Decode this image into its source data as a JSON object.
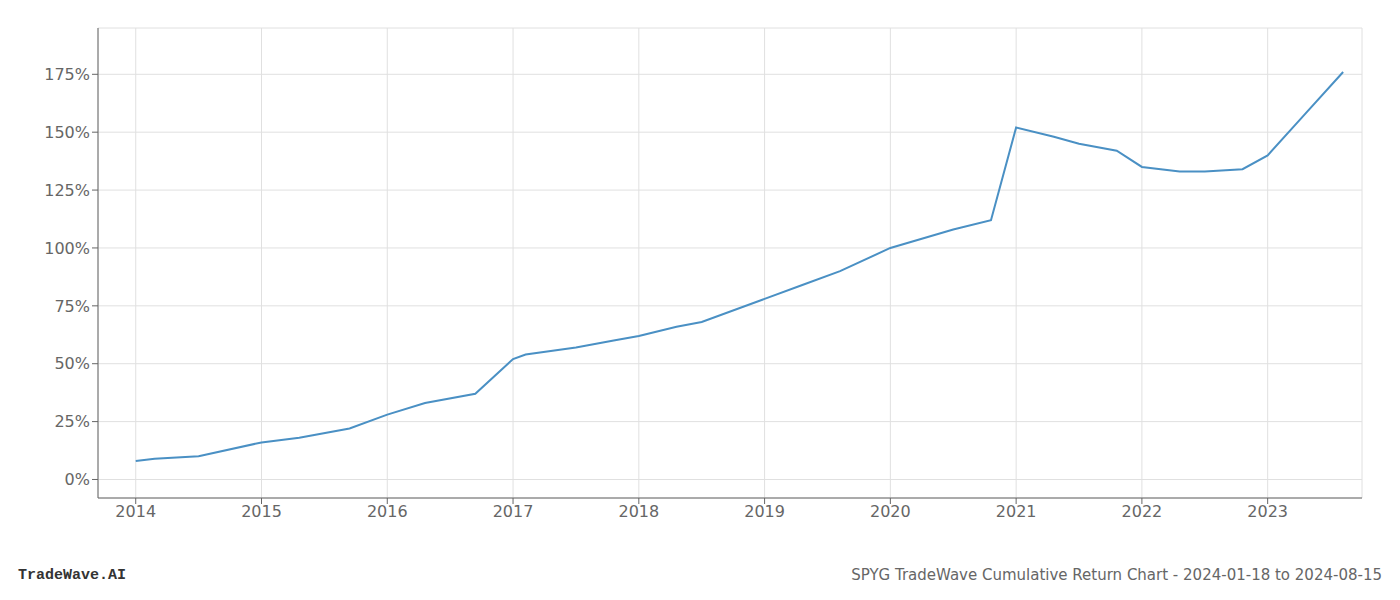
{
  "chart_data": {
    "type": "line",
    "title": "SPYG TradeWave Cumulative Return Chart - 2024-01-18 to 2024-08-15",
    "annotations": [
      "TradeWave.AI"
    ],
    "x": [
      2014.0,
      2014.15,
      2014.5,
      2015.0,
      2015.3,
      2015.7,
      2016.0,
      2016.3,
      2016.7,
      2017.0,
      2017.1,
      2017.5,
      2017.8,
      2018.0,
      2018.3,
      2018.5,
      2019.0,
      2019.3,
      2019.6,
      2020.0,
      2020.5,
      2020.8,
      2021.0,
      2021.3,
      2021.5,
      2021.8,
      2022.0,
      2022.3,
      2022.5,
      2022.8,
      2023.0,
      2023.3,
      2023.6
    ],
    "values": [
      8,
      9,
      10,
      16,
      18,
      22,
      28,
      33,
      37,
      52,
      54,
      57,
      60,
      62,
      66,
      68,
      78,
      84,
      90,
      100,
      108,
      112,
      152,
      148,
      145,
      142,
      135,
      133,
      133,
      134,
      140,
      158,
      176
    ],
    "color": "#4a90c4",
    "xlim": [
      2013.7,
      2023.75
    ],
    "ylim": [
      -8,
      195
    ],
    "xticks": [
      2014,
      2015,
      2016,
      2017,
      2018,
      2019,
      2020,
      2021,
      2022,
      2023
    ],
    "yticks": [
      {
        "value": 0,
        "label": "0%"
      },
      {
        "value": 25,
        "label": "25%"
      },
      {
        "value": 50,
        "label": "50%"
      },
      {
        "value": 75,
        "label": "75%"
      },
      {
        "value": 100,
        "label": "100%"
      },
      {
        "value": 125,
        "label": "125%"
      },
      {
        "value": 150,
        "label": "150%"
      },
      {
        "value": 175,
        "label": "175%"
      }
    ],
    "grid": true
  }
}
